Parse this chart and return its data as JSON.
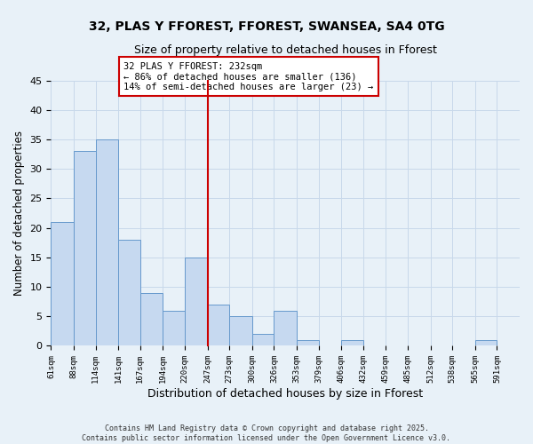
{
  "title": "32, PLAS Y FFOREST, FFOREST, SWANSEA, SA4 0TG",
  "subtitle": "Size of property relative to detached houses in Fforest",
  "xlabel": "Distribution of detached houses by size in Fforest",
  "ylabel": "Number of detached properties",
  "bin_labels": [
    "61sqm",
    "88sqm",
    "114sqm",
    "141sqm",
    "167sqm",
    "194sqm",
    "220sqm",
    "247sqm",
    "273sqm",
    "300sqm",
    "326sqm",
    "353sqm",
    "379sqm",
    "406sqm",
    "432sqm",
    "459sqm",
    "485sqm",
    "512sqm",
    "538sqm",
    "565sqm",
    "591sqm"
  ],
  "bin_edges": [
    61,
    88,
    114,
    141,
    167,
    194,
    220,
    247,
    273,
    300,
    326,
    353,
    379,
    406,
    432,
    459,
    485,
    512,
    538,
    565,
    591,
    618
  ],
  "bar_heights": [
    21,
    33,
    35,
    18,
    9,
    6,
    15,
    7,
    5,
    2,
    6,
    1,
    0,
    1,
    0,
    0,
    0,
    0,
    0,
    1,
    0
  ],
  "bar_color": "#c6d9f0",
  "bar_edge_color": "#6699cc",
  "grid_color": "#c8d8ea",
  "background_color": "#e8f1f8",
  "red_line_x": 247,
  "annotation_title": "32 PLAS Y FFOREST: 232sqm",
  "annotation_line1": "← 86% of detached houses are smaller (136)",
  "annotation_line2": "14% of semi-detached houses are larger (23) →",
  "annotation_box_color": "#ffffff",
  "annotation_box_edge": "#cc0000",
  "red_line_color": "#cc0000",
  "ylim": [
    0,
    45
  ],
  "yticks": [
    0,
    5,
    10,
    15,
    20,
    25,
    30,
    35,
    40,
    45
  ],
  "footer1": "Contains HM Land Registry data © Crown copyright and database right 2025.",
  "footer2": "Contains public sector information licensed under the Open Government Licence v3.0."
}
